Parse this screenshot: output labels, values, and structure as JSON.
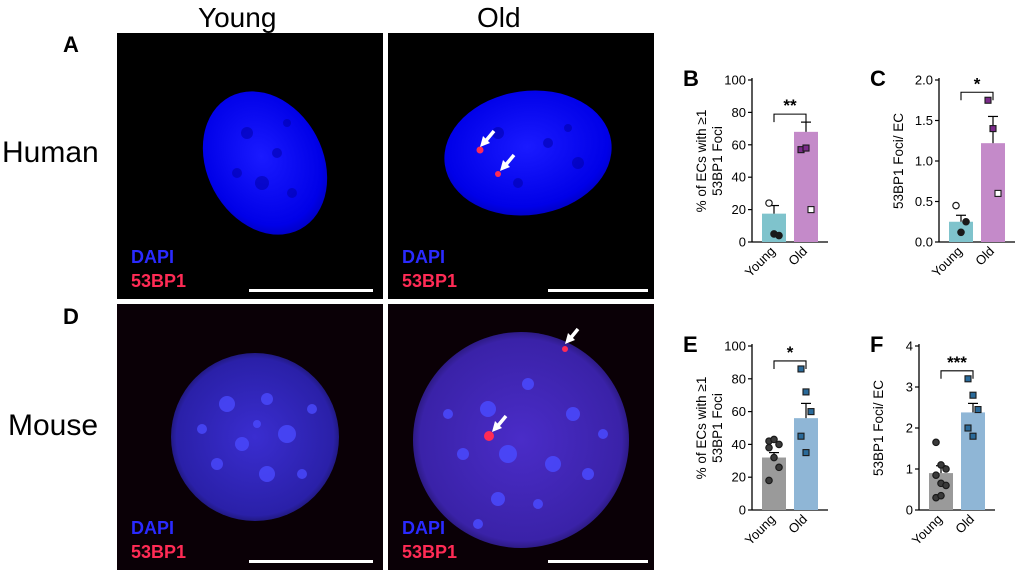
{
  "headers": {
    "young": "Young",
    "old": "Old"
  },
  "row_labels": {
    "human": "Human",
    "mouse": "Mouse"
  },
  "panel_letters": {
    "A": "A",
    "B": "B",
    "C": "C",
    "D": "D",
    "E": "E",
    "F": "F"
  },
  "image_labels": {
    "dapi": "DAPI",
    "p53bp1": "53BP1"
  },
  "colors": {
    "dapi": "#2a2aff",
    "p53bp1": "#ff2b55",
    "young_human": "#7fc3cc",
    "old_human": "#c48ac9",
    "young_mouse": "#9a9a9a",
    "old_mouse": "#8fb6d6"
  },
  "chart_data": [
    {
      "id": "B",
      "type": "bar",
      "categories": [
        "Young",
        "Old"
      ],
      "values": [
        17.5,
        68
      ],
      "errors": [
        5,
        6
      ],
      "points": [
        [
          24,
          5,
          4
        ],
        [
          57,
          58,
          20
        ]
      ],
      "point_markers": [
        "circle",
        "square"
      ],
      "ylabel_line1": "% of ECs with ≥1",
      "ylabel_line2": "53BP1 Foci",
      "ylim": [
        0,
        100
      ],
      "yticks": [
        "0",
        "20",
        "40",
        "60",
        "80",
        "100"
      ],
      "significance": "**",
      "bar_colors": [
        "#7fc3cc",
        "#c48ac9"
      ]
    },
    {
      "id": "C",
      "type": "bar",
      "categories": [
        "Young",
        "Old"
      ],
      "values": [
        0.25,
        1.22
      ],
      "errors": [
        0.08,
        0.33
      ],
      "points": [
        [
          0.45,
          0.12,
          0.25
        ],
        [
          1.75,
          1.4,
          0.6
        ]
      ],
      "point_markers": [
        "circle",
        "square"
      ],
      "ylabel_line1": "53BP1 Foci/ EC",
      "ylabel_line2": "",
      "ylim": [
        0,
        2.0
      ],
      "yticks": [
        "0.0",
        "0.5",
        "1.0",
        "1.5",
        "2.0"
      ],
      "significance": "*",
      "bar_colors": [
        "#7fc3cc",
        "#c48ac9"
      ]
    },
    {
      "id": "E",
      "type": "bar",
      "categories": [
        "Young",
        "Old"
      ],
      "values": [
        32,
        56
      ],
      "errors": [
        3,
        9
      ],
      "points": [
        [
          42,
          43,
          40,
          38,
          32,
          26,
          18
        ],
        [
          86,
          72,
          60,
          45,
          35
        ]
      ],
      "point_markers": [
        "circle",
        "square"
      ],
      "ylabel_line1": "% of ECs with ≥1",
      "ylabel_line2": "53BP1 Foci",
      "ylim": [
        0,
        100
      ],
      "yticks": [
        "0",
        "20",
        "40",
        "60",
        "80",
        "100"
      ],
      "significance": "*",
      "bar_colors": [
        "#9a9a9a",
        "#8fb6d6"
      ]
    },
    {
      "id": "F",
      "type": "bar",
      "categories": [
        "Young",
        "Old"
      ],
      "values": [
        0.9,
        2.38
      ],
      "errors": [
        0.18,
        0.22
      ],
      "points": [
        [
          1.65,
          1.1,
          1.0,
          0.85,
          0.65,
          0.6,
          0.3,
          0.35
        ],
        [
          3.2,
          2.8,
          2.45,
          2.0,
          1.8
        ]
      ],
      "point_markers": [
        "circle",
        "square"
      ],
      "ylabel_line1": "53BP1 Foci/ EC",
      "ylabel_line2": "",
      "ylim": [
        0,
        4
      ],
      "yticks": [
        "0",
        "1",
        "2",
        "3",
        "4"
      ],
      "significance": "***",
      "bar_colors": [
        "#9a9a9a",
        "#8fb6d6"
      ]
    }
  ]
}
